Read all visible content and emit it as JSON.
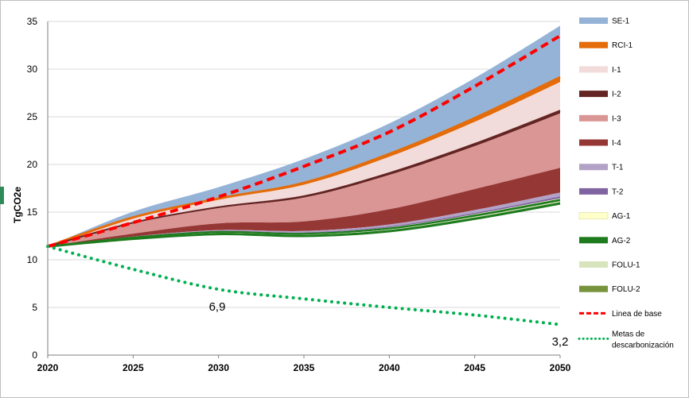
{
  "chart_data": {
    "type": "area",
    "ylabel": "TgCO2e",
    "xlim": [
      2020,
      2050
    ],
    "ylim": [
      0,
      35
    ],
    "x_ticks": [
      "2020",
      "2025",
      "2030",
      "2035",
      "2040",
      "2045",
      "2050"
    ],
    "y_ticks": [
      "0",
      "5",
      "10",
      "15",
      "20",
      "25",
      "30",
      "35"
    ],
    "grid": "horizontal",
    "legend_position": "right",
    "x": [
      2020,
      2025,
      2030,
      2035,
      2040,
      2045,
      2050
    ],
    "stack_top": [
      11.4,
      12.2,
      12.7,
      12.5,
      13.0,
      14.3,
      15.9
    ],
    "series": [
      {
        "name": "SE-1",
        "color": "#95b3d7",
        "values": [
          0.0,
          0.6,
          1.2,
          2.5,
          3.2,
          4.2,
          5.4
        ]
      },
      {
        "name": "RCI-1",
        "color": "#e46c0a",
        "values": [
          0.0,
          0.05,
          0.1,
          0.2,
          0.3,
          0.4,
          0.5
        ]
      },
      {
        "name": "I-1",
        "color": "#f2dcdb",
        "values": [
          0.0,
          0.5,
          0.8,
          1.2,
          1.7,
          2.3,
          3.0
        ]
      },
      {
        "name": "I-2",
        "color": "#632523",
        "values": [
          0.0,
          0.05,
          0.1,
          0.15,
          0.2,
          0.25,
          0.3
        ]
      },
      {
        "name": "I-3",
        "color": "#da9694",
        "values": [
          0.0,
          1.1,
          1.6,
          2.5,
          3.6,
          4.5,
          5.7
        ]
      },
      {
        "name": "I-4",
        "color": "#953735",
        "values": [
          0.0,
          0.3,
          0.7,
          1.0,
          1.6,
          2.2,
          2.6
        ]
      },
      {
        "name": "T-1",
        "color": "#b3a2c7",
        "values": [
          0.0,
          0.05,
          0.1,
          0.15,
          0.2,
          0.3,
          0.4
        ]
      },
      {
        "name": "T-2",
        "color": "#8064a2",
        "values": [
          0.0,
          0.02,
          0.04,
          0.06,
          0.1,
          0.14,
          0.2
        ]
      },
      {
        "name": "AG-1",
        "color": "#ffffcc",
        "values": [
          0.0,
          0.03,
          0.05,
          0.07,
          0.1,
          0.12,
          0.15
        ]
      },
      {
        "name": "AG-2",
        "color": "#1e7b1e",
        "values": [
          0.0,
          0.06,
          0.1,
          0.1,
          0.12,
          0.14,
          0.15
        ]
      },
      {
        "name": "FOLU-1",
        "color": "#d7e4bd",
        "values": [
          0.0,
          0.03,
          0.05,
          0.06,
          0.08,
          0.1,
          0.1
        ]
      },
      {
        "name": "FOLU-2",
        "color": "#77933c",
        "values": [
          0.0,
          0.05,
          0.08,
          0.08,
          0.1,
          0.12,
          0.15
        ]
      }
    ],
    "baseline": {
      "name": "Linea de base",
      "color": "#ff0000",
      "values": [
        11.4,
        13.9,
        16.6,
        19.8,
        23.4,
        28.2,
        33.5
      ]
    },
    "targets": {
      "name": "Metas de descarbonización",
      "color": "#00b050",
      "values": [
        11.4,
        9.0,
        6.9,
        5.9,
        5.0,
        4.2,
        3.2
      ]
    },
    "annotations": [
      "6,9",
      "3,2"
    ]
  }
}
